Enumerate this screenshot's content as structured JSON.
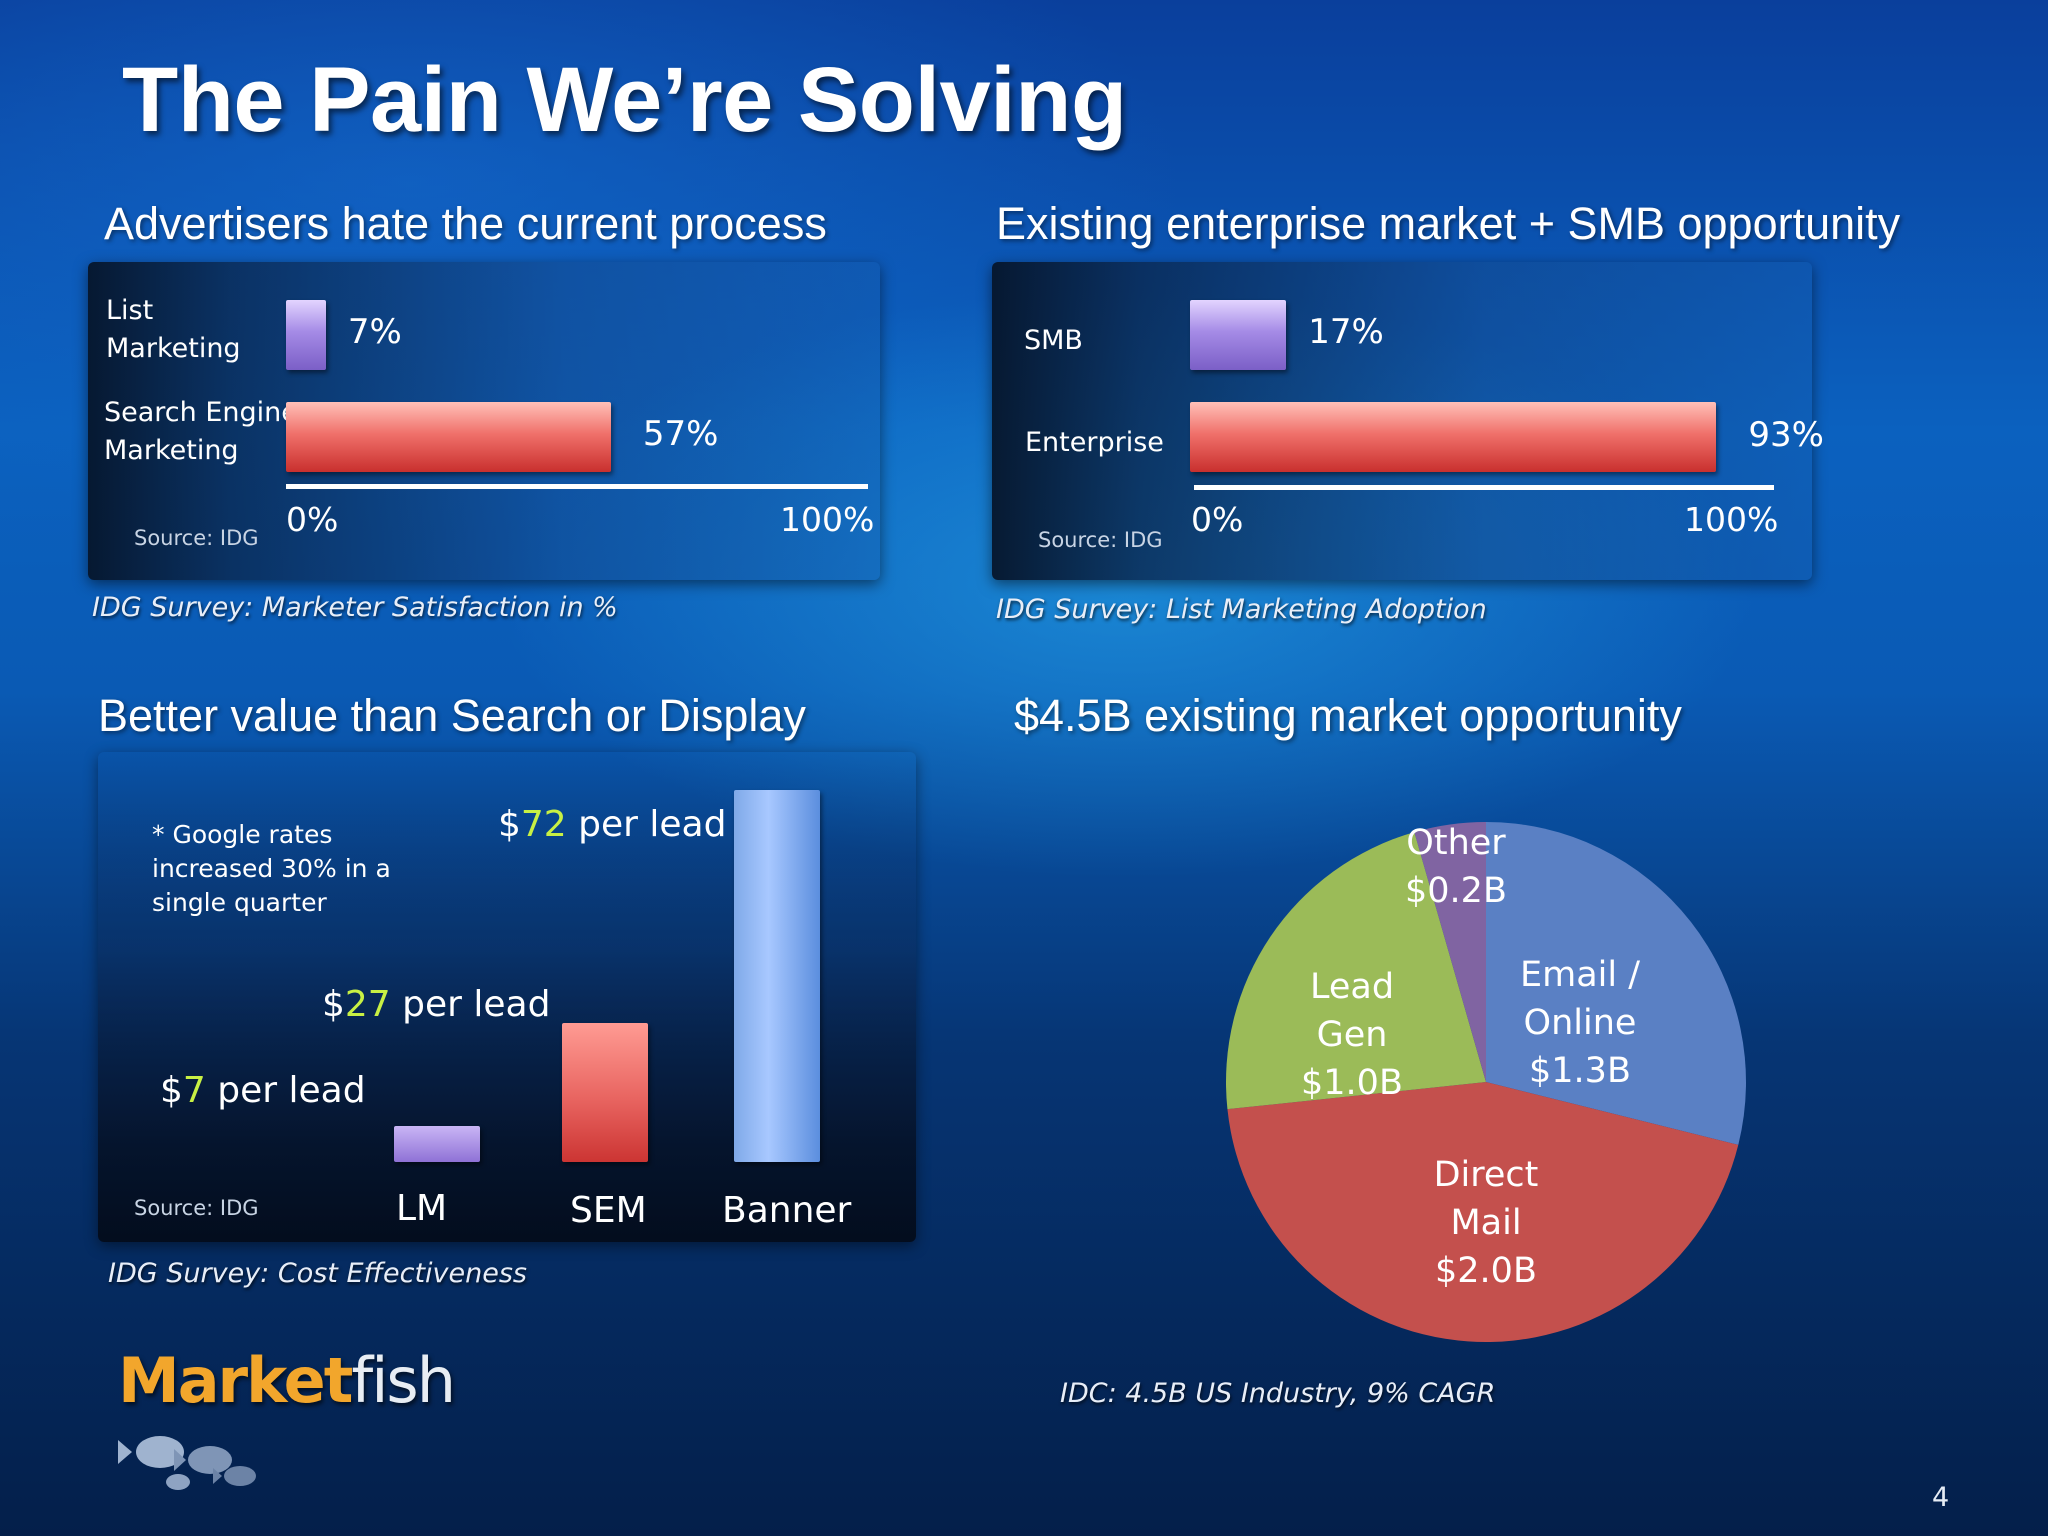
{
  "title": "The Pain We’re Solving",
  "page_number": "4",
  "logo": {
    "text_a": "Market",
    "text_b": "fish"
  },
  "colors": {
    "purple": "#8e70d4",
    "red": "#e05450",
    "blue": "#6d9ce6",
    "green_value": "#c8f044",
    "pie_email": "#5a80c4",
    "pie_direct": "#c4504d",
    "pie_lead": "#9bbb58",
    "pie_other": "#8064a2"
  },
  "chart_data": [
    {
      "type": "bar",
      "orientation": "horizontal",
      "title": "Advertisers hate the current process",
      "categories": [
        "List Marketing",
        "Search Engine Marketing"
      ],
      "values": [
        7,
        57
      ],
      "value_labels": [
        "7%",
        "57%"
      ],
      "xlim": [
        0,
        100
      ],
      "tick_labels": [
        "0%",
        "100%"
      ],
      "source": "Source: IDG",
      "caption": "IDG Survey: Marketer Satisfaction in %"
    },
    {
      "type": "bar",
      "orientation": "horizontal",
      "title": "Existing enterprise market + SMB opportunity",
      "categories": [
        "SMB",
        "Enterprise"
      ],
      "values": [
        17,
        93
      ],
      "value_labels": [
        "17%",
        "93%"
      ],
      "xlim": [
        0,
        100
      ],
      "tick_labels": [
        "0%",
        "100%"
      ],
      "source": "Source: IDG",
      "caption": "IDG Survey: List Marketing Adoption"
    },
    {
      "type": "bar",
      "orientation": "vertical",
      "title": "Better value than Search or Display",
      "categories": [
        "LM",
        "SEM",
        "Banner"
      ],
      "values": [
        7,
        27,
        72
      ],
      "value_labels": [
        {
          "prefix": "$",
          "number": "7",
          "suffix": " per lead"
        },
        {
          "prefix": "$",
          "number": "27",
          "suffix": " per lead"
        },
        {
          "prefix": "$",
          "number": "72",
          "suffix": " per lead"
        }
      ],
      "ylim": [
        0,
        72
      ],
      "note": "* Google rates increased 30% in a single quarter",
      "source": "Source: IDG",
      "caption": "IDG Survey: Cost Effectiveness"
    },
    {
      "type": "pie",
      "title": "$4.5B existing market opportunity",
      "slices": [
        {
          "label": "Email / Online",
          "value_label": "$1.3B",
          "value": 1.3
        },
        {
          "label": "Direct Mail",
          "value_label": "$2.0B",
          "value": 2.0
        },
        {
          "label": "Lead Gen",
          "value_label": "$1.0B",
          "value": 1.0
        },
        {
          "label": "Other",
          "value_label": "$0.2B",
          "value": 0.2
        }
      ],
      "caption": "IDC: 4.5B US Industry, 9% CAGR"
    }
  ]
}
